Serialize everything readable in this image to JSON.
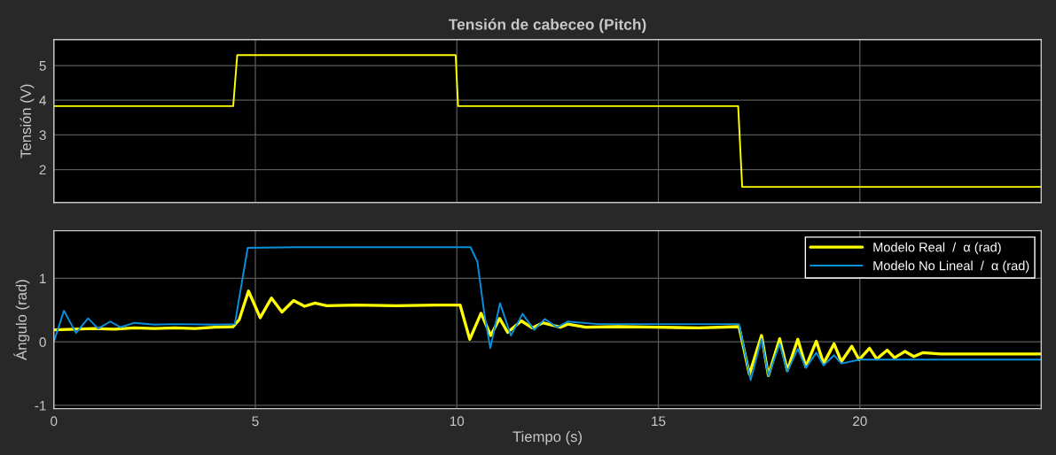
{
  "chart_data": [
    {
      "type": "line",
      "title": "Tensión de cabeceo (Pitch)",
      "ylabel": "Tensión (V)",
      "xlim": [
        0,
        24.5
      ],
      "xticks": [
        0,
        5,
        10,
        15,
        20
      ],
      "ylim": [
        1.05,
        5.75
      ],
      "yticks": [
        2,
        3,
        4,
        5
      ],
      "grid": true,
      "tick_labels": "y",
      "series": [
        {
          "color": "#ffff00",
          "x": [
            0,
            4.45,
            4.55,
            9.97,
            10.03,
            16.98,
            17.08,
            24.5
          ],
          "values": [
            3.83,
            3.83,
            5.3,
            5.3,
            3.83,
            3.83,
            1.5,
            1.5
          ]
        }
      ]
    },
    {
      "type": "line",
      "xlabel": "Tiempo (s)",
      "ylabel": "Ángulo (rad)",
      "xlim": [
        0,
        24.5
      ],
      "xticks": [
        0,
        5,
        10,
        15,
        20
      ],
      "ylim": [
        -1.05,
        1.75
      ],
      "yticks": [
        -1,
        0,
        1
      ],
      "grid": true,
      "legend": "top right",
      "series": [
        {
          "name": "Modelo Real  /  α (rad)",
          "color": "#ffff00",
          "x": [
            0,
            0.5,
            1.0,
            1.5,
            2.0,
            2.5,
            3.0,
            3.5,
            4.0,
            4.45,
            4.6,
            4.83,
            5.12,
            5.4,
            5.66,
            5.95,
            6.22,
            6.48,
            6.77,
            7.5,
            8.5,
            9.5,
            10.08,
            10.32,
            10.6,
            10.84,
            11.06,
            11.26,
            11.6,
            11.87,
            12.13,
            12.57,
            12.75,
            13.2,
            14.0,
            15.0,
            16.0,
            17.0,
            17.26,
            17.56,
            17.73,
            18.01,
            18.2,
            18.46,
            18.66,
            18.92,
            19.1,
            19.36,
            19.54,
            19.8,
            19.98,
            20.24,
            20.42,
            20.68,
            20.86,
            21.12,
            21.34,
            21.56,
            22.0,
            22.5,
            23.0,
            24.5
          ],
          "values": [
            0.19,
            0.2,
            0.21,
            0.2,
            0.22,
            0.21,
            0.22,
            0.21,
            0.23,
            0.24,
            0.35,
            0.8,
            0.38,
            0.69,
            0.47,
            0.65,
            0.56,
            0.61,
            0.57,
            0.58,
            0.57,
            0.58,
            0.58,
            0.04,
            0.45,
            0.1,
            0.37,
            0.15,
            0.33,
            0.22,
            0.3,
            0.23,
            0.28,
            0.23,
            0.24,
            0.23,
            0.22,
            0.24,
            -0.51,
            0.1,
            -0.53,
            0.05,
            -0.45,
            0.04,
            -0.39,
            0.01,
            -0.34,
            -0.03,
            -0.31,
            -0.07,
            -0.28,
            -0.1,
            -0.27,
            -0.13,
            -0.25,
            -0.15,
            -0.23,
            -0.17,
            -0.19,
            -0.19,
            -0.19,
            -0.19
          ]
        },
        {
          "name": "Modelo No Lineal  /  α (rad)",
          "color": "#0a8fdc",
          "x": [
            0,
            0.25,
            0.55,
            0.85,
            1.1,
            1.4,
            1.65,
            2.0,
            2.5,
            3.0,
            4.0,
            4.49,
            4.81,
            6.0,
            8.0,
            10.34,
            10.51,
            10.68,
            10.83,
            11.07,
            11.34,
            11.63,
            11.92,
            12.18,
            12.49,
            12.75,
            13.5,
            15.0,
            17.0,
            17.29,
            17.56,
            17.73,
            18.01,
            18.2,
            18.46,
            18.66,
            18.92,
            19.1,
            19.36,
            19.54,
            20.0,
            21.0,
            24.5
          ],
          "values": [
            0.0,
            0.49,
            0.14,
            0.37,
            0.21,
            0.32,
            0.23,
            0.3,
            0.27,
            0.28,
            0.27,
            0.28,
            1.48,
            1.49,
            1.49,
            1.49,
            1.26,
            0.45,
            -0.1,
            0.61,
            0.1,
            0.44,
            0.19,
            0.36,
            0.23,
            0.32,
            0.28,
            0.28,
            0.28,
            -0.6,
            0.05,
            -0.53,
            -0.03,
            -0.47,
            -0.11,
            -0.41,
            -0.17,
            -0.37,
            -0.21,
            -0.34,
            -0.28,
            -0.28,
            -0.28
          ]
        }
      ]
    }
  ]
}
